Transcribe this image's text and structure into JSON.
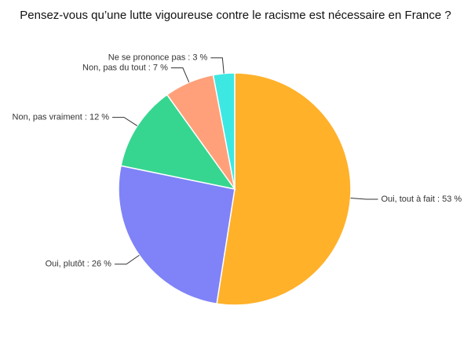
{
  "chart_data": {
    "type": "pie",
    "title": "Pensez-vous qu’une lutte vigoureuse contre le racisme est nécessaire en France ?",
    "values": [
      53,
      26,
      12,
      7,
      3
    ],
    "value_labels": [
      "Oui, tout à fait : 53 %",
      "Oui, plutôt : 26 %",
      "Non, pas vraiment : 12 %",
      "Non, pas du tout : 7 %",
      "Ne se prononce pas : 3 %"
    ],
    "colors": [
      "#ffb12a",
      "#7f83f7",
      "#36d690",
      "#ffa07a",
      "#3de8e3"
    ]
  }
}
